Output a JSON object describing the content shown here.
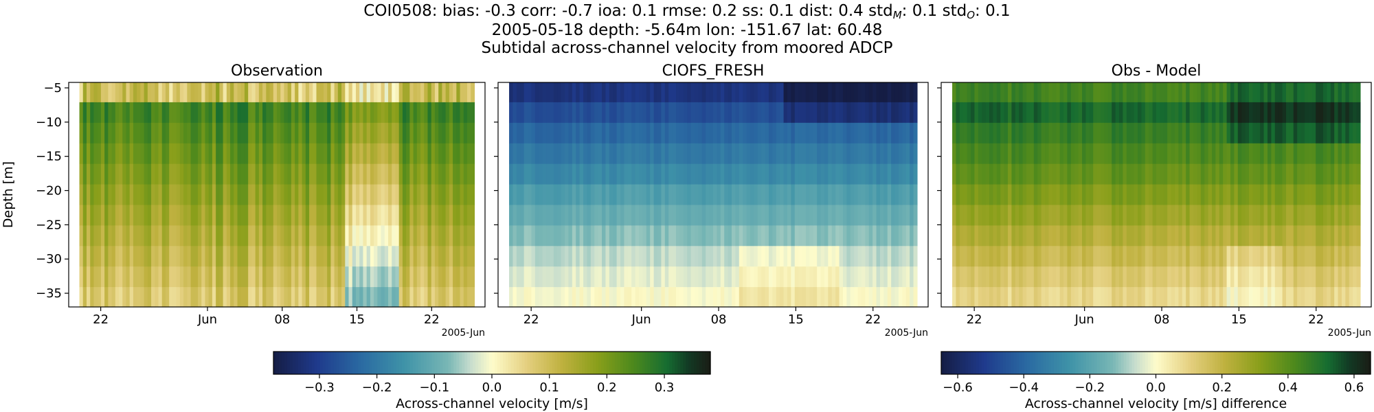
{
  "header": {
    "line1_prefix": "COI0508: bias: -0.3  corr: -0.7  ioa: 0.1  rmse: 0.2  ss: 0.1  dist: 0.4  std",
    "line1_sub_m": "M",
    "line1_mid": ": 0.1  std",
    "line1_sub_o": "O",
    "line1_end": ": 0.1",
    "line2": "2005-05-18 depth: -5.64m lon: -151.67 lat: 60.48",
    "line3": "Subtidal across-channel velocity from moored ADCP"
  },
  "colors": {
    "cmap": [
      "#151d44",
      "#1f3a8c",
      "#2a6aa2",
      "#3f93a8",
      "#79b7b5",
      "#c5dccd",
      "#fefccb",
      "#e4cf7f",
      "#bfb13f",
      "#8a9f1b",
      "#4f8a1c",
      "#166d31",
      "#123a24",
      "#1a1c15"
    ],
    "cmap_stops": [
      0,
      0.1,
      0.2,
      0.3,
      0.4,
      0.45,
      0.5,
      0.58,
      0.66,
      0.74,
      0.82,
      0.9,
      0.95,
      1
    ]
  },
  "chart_data": [
    {
      "type": "heatmap",
      "title": "Observation",
      "ylabel": "Depth [m]",
      "xlabel_offset": "2005-Jun",
      "x_ticks": [
        "22",
        "Jun",
        "08",
        "15",
        "22"
      ],
      "x_tick_dates": [
        "2005-05-22",
        "2005-06-01",
        "2005-06-08",
        "2005-06-15",
        "2005-06-22"
      ],
      "xlim": [
        "2005-05-19",
        "2005-06-27"
      ],
      "y_ticks": [
        -5,
        -10,
        -15,
        -20,
        -25,
        -30,
        -35
      ],
      "ylim": [
        -37,
        -4.2
      ],
      "depth_bins": [
        -5.6,
        -8.6,
        -11.6,
        -14.6,
        -17.6,
        -20.6,
        -23.6,
        -26.6,
        -29.6,
        -32.6,
        -35.6
      ],
      "vlim": [
        -0.38,
        0.38
      ],
      "value_profile": [
        0.1,
        0.26,
        0.24,
        0.22,
        0.2,
        0.18,
        0.16,
        0.14,
        0.12,
        0.1,
        0.08
      ],
      "notes": "Mostly positive (0.05 to 0.3 m/s); lighter near 2005-06-14 to 06-18 at depth"
    },
    {
      "type": "heatmap",
      "title": "CIOFS_FRESH",
      "x_ticks": [
        "22",
        "Jun",
        "08",
        "15",
        "22"
      ],
      "x_tick_dates": [
        "2005-05-22",
        "2005-06-01",
        "2005-06-08",
        "2005-06-15",
        "2005-06-22"
      ],
      "xlabel_offset": "2005-Jun",
      "depth_bins": [
        -5.6,
        -8.6,
        -11.6,
        -14.6,
        -17.6,
        -20.6,
        -23.6,
        -26.6,
        -29.6,
        -32.6,
        -35.6
      ],
      "vlim": [
        -0.38,
        0.38
      ],
      "value_profile": [
        -0.32,
        -0.27,
        -0.23,
        -0.2,
        -0.17,
        -0.13,
        -0.1,
        -0.07,
        -0.04,
        -0.02,
        0.0
      ],
      "notes": "Negative near surface (about -0.35 m/s) increasing toward 0 at depth"
    },
    {
      "type": "heatmap",
      "title": "Obs - Model",
      "x_ticks": [
        "22",
        "Jun",
        "08",
        "15",
        "22"
      ],
      "x_tick_dates": [
        "2005-05-22",
        "2005-06-01",
        "2005-06-08",
        "2005-06-15",
        "2005-06-22"
      ],
      "xlabel_offset": "2005-Jun",
      "depth_bins": [
        -5.6,
        -8.6,
        -11.6,
        -14.6,
        -17.6,
        -20.6,
        -23.6,
        -26.6,
        -29.6,
        -32.6,
        -35.6
      ],
      "vlim": [
        -0.65,
        0.65
      ],
      "value_profile": [
        0.44,
        0.52,
        0.46,
        0.42,
        0.38,
        0.33,
        0.28,
        0.23,
        0.18,
        0.13,
        0.09
      ],
      "notes": "Positive differences, largest near surface late in record (about 0.6 m/s)"
    }
  ],
  "colorbars": [
    {
      "label": "Across-channel velocity [m/s]",
      "ticks": [
        "−0.3",
        "−0.2",
        "−0.1",
        "0.0",
        "0.1",
        "0.2",
        "0.3"
      ],
      "tick_values": [
        -0.3,
        -0.2,
        -0.1,
        0.0,
        0.1,
        0.2,
        0.3
      ],
      "vlim": [
        -0.38,
        0.38
      ]
    },
    {
      "label": "Across-channel velocity [m/s] difference",
      "ticks": [
        "−0.6",
        "−0.4",
        "−0.2",
        "0.0",
        "0.2",
        "0.4",
        "0.6"
      ],
      "tick_values": [
        -0.6,
        -0.4,
        -0.2,
        0.0,
        0.2,
        0.4,
        0.6
      ],
      "vlim": [
        -0.65,
        0.65
      ]
    }
  ]
}
